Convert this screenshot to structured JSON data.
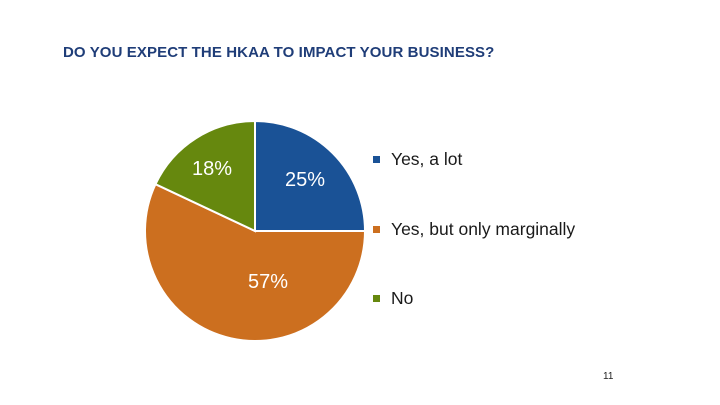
{
  "slide": {
    "title": "DO YOU EXPECT THE HKAA TO IMPACT YOUR BUSINESS?",
    "page_number": "11"
  },
  "chart_data": {
    "type": "pie",
    "title": "DO YOU EXPECT THE HKAA TO IMPACT YOUR BUSINESS?",
    "categories": [
      "Yes, a lot",
      "Yes, but only marginally",
      "No"
    ],
    "values": [
      25,
      57,
      18
    ],
    "labels": [
      "25%",
      "57%",
      "18%"
    ],
    "colors": [
      "#1a5296",
      "#cc6f1f",
      "#66880e"
    ],
    "start_angle_deg": 0,
    "direction": "clockwise",
    "legend_position": "right"
  }
}
